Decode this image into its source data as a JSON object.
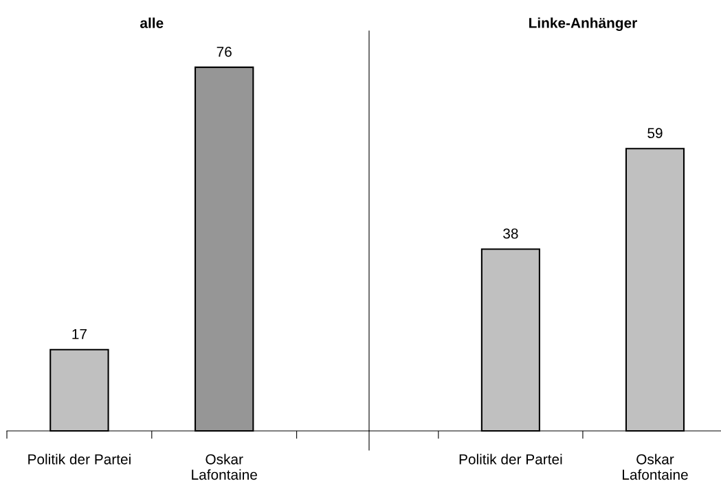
{
  "chart_data": [
    {
      "type": "bar",
      "title": "alle",
      "categories": [
        "Politik der Partei",
        "Oskar\nLafontaine"
      ],
      "values": [
        17,
        76
      ],
      "colors": [
        "#c0c0c0",
        "#969696"
      ],
      "data_labels": true,
      "grid": false,
      "legend": false
    },
    {
      "type": "bar",
      "title": "Linke-Anhänger",
      "categories": [
        "Politik der Partei",
        "Oskar\nLafontaine"
      ],
      "values": [
        38,
        59
      ],
      "colors": [
        "#c0c0c0",
        "#c0c0c0"
      ],
      "data_labels": true,
      "grid": false,
      "legend": false
    }
  ]
}
